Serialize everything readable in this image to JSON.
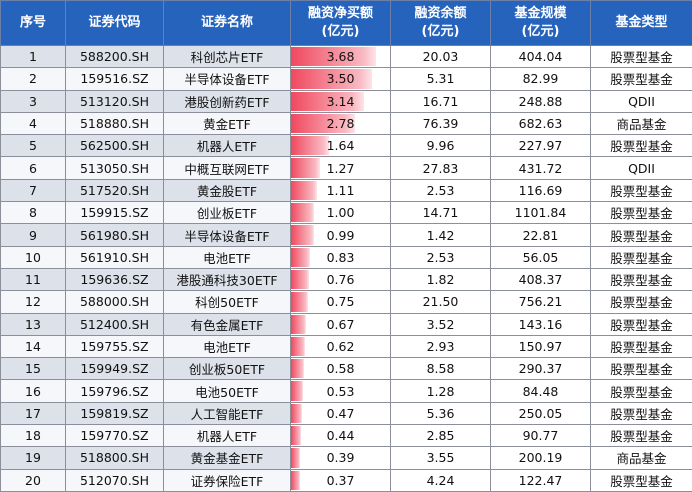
{
  "table": {
    "header": [
      "序号",
      "证券代码",
      "证券名称",
      "融资净买额\n(亿元)",
      "融资余额\n(亿元)",
      "基金规模\n(亿元)",
      "基金类型"
    ],
    "rows": [
      [
        "1",
        "588200.SH",
        "科创芯片ETF",
        "3.68",
        "20.03",
        "404.04",
        "股票型基金"
      ],
      [
        "2",
        "159516.SZ",
        "半导体设备ETF",
        "3.50",
        "5.31",
        "82.99",
        "股票型基金"
      ],
      [
        "3",
        "513120.SH",
        "港股创新药ETF",
        "3.14",
        "16.71",
        "248.88",
        "QDII"
      ],
      [
        "4",
        "518880.SH",
        "黄金ETF",
        "2.78",
        "76.39",
        "682.63",
        "商品基金"
      ],
      [
        "5",
        "562500.SH",
        "机器人ETF",
        "1.64",
        "9.96",
        "227.97",
        "股票型基金"
      ],
      [
        "6",
        "513050.SH",
        "中概互联网ETF",
        "1.27",
        "27.83",
        "431.72",
        "QDII"
      ],
      [
        "7",
        "517520.SH",
        "黄金股ETF",
        "1.11",
        "2.53",
        "116.69",
        "股票型基金"
      ],
      [
        "8",
        "159915.SZ",
        "创业板ETF",
        "1.00",
        "14.71",
        "1101.84",
        "股票型基金"
      ],
      [
        "9",
        "561980.SH",
        "半导体设备ETF",
        "0.99",
        "1.42",
        "22.81",
        "股票型基金"
      ],
      [
        "10",
        "561910.SH",
        "电池ETF",
        "0.83",
        "2.53",
        "56.05",
        "股票型基金"
      ],
      [
        "11",
        "159636.SZ",
        "港股通科技30ETF",
        "0.76",
        "1.82",
        "408.37",
        "股票型基金"
      ],
      [
        "12",
        "588000.SH",
        "科创50ETF",
        "0.75",
        "21.50",
        "756.21",
        "股票型基金"
      ],
      [
        "13",
        "512400.SH",
        "有色金属ETF",
        "0.67",
        "3.52",
        "143.16",
        "股票型基金"
      ],
      [
        "14",
        "159755.SZ",
        "电池ETF",
        "0.62",
        "2.93",
        "150.97",
        "股票型基金"
      ],
      [
        "15",
        "159949.SZ",
        "创业板50ETF",
        "0.58",
        "8.58",
        "290.37",
        "股票型基金"
      ],
      [
        "16",
        "159796.SZ",
        "电池50ETF",
        "0.53",
        "1.28",
        "84.48",
        "股票型基金"
      ],
      [
        "17",
        "159819.SZ",
        "人工智能ETF",
        "0.47",
        "5.36",
        "250.05",
        "股票型基金"
      ],
      [
        "18",
        "159770.SZ",
        "机器人ETF",
        "0.44",
        "2.85",
        "90.77",
        "股票型基金"
      ],
      [
        "19",
        "518800.SH",
        "黄金基金ETF",
        "0.39",
        "3.55",
        "200.19",
        "商品基金"
      ],
      [
        "20",
        "512070.SH",
        "证券保险ETF",
        "0.37",
        "4.24",
        "122.47",
        "股票型基金"
      ]
    ]
  }
}
